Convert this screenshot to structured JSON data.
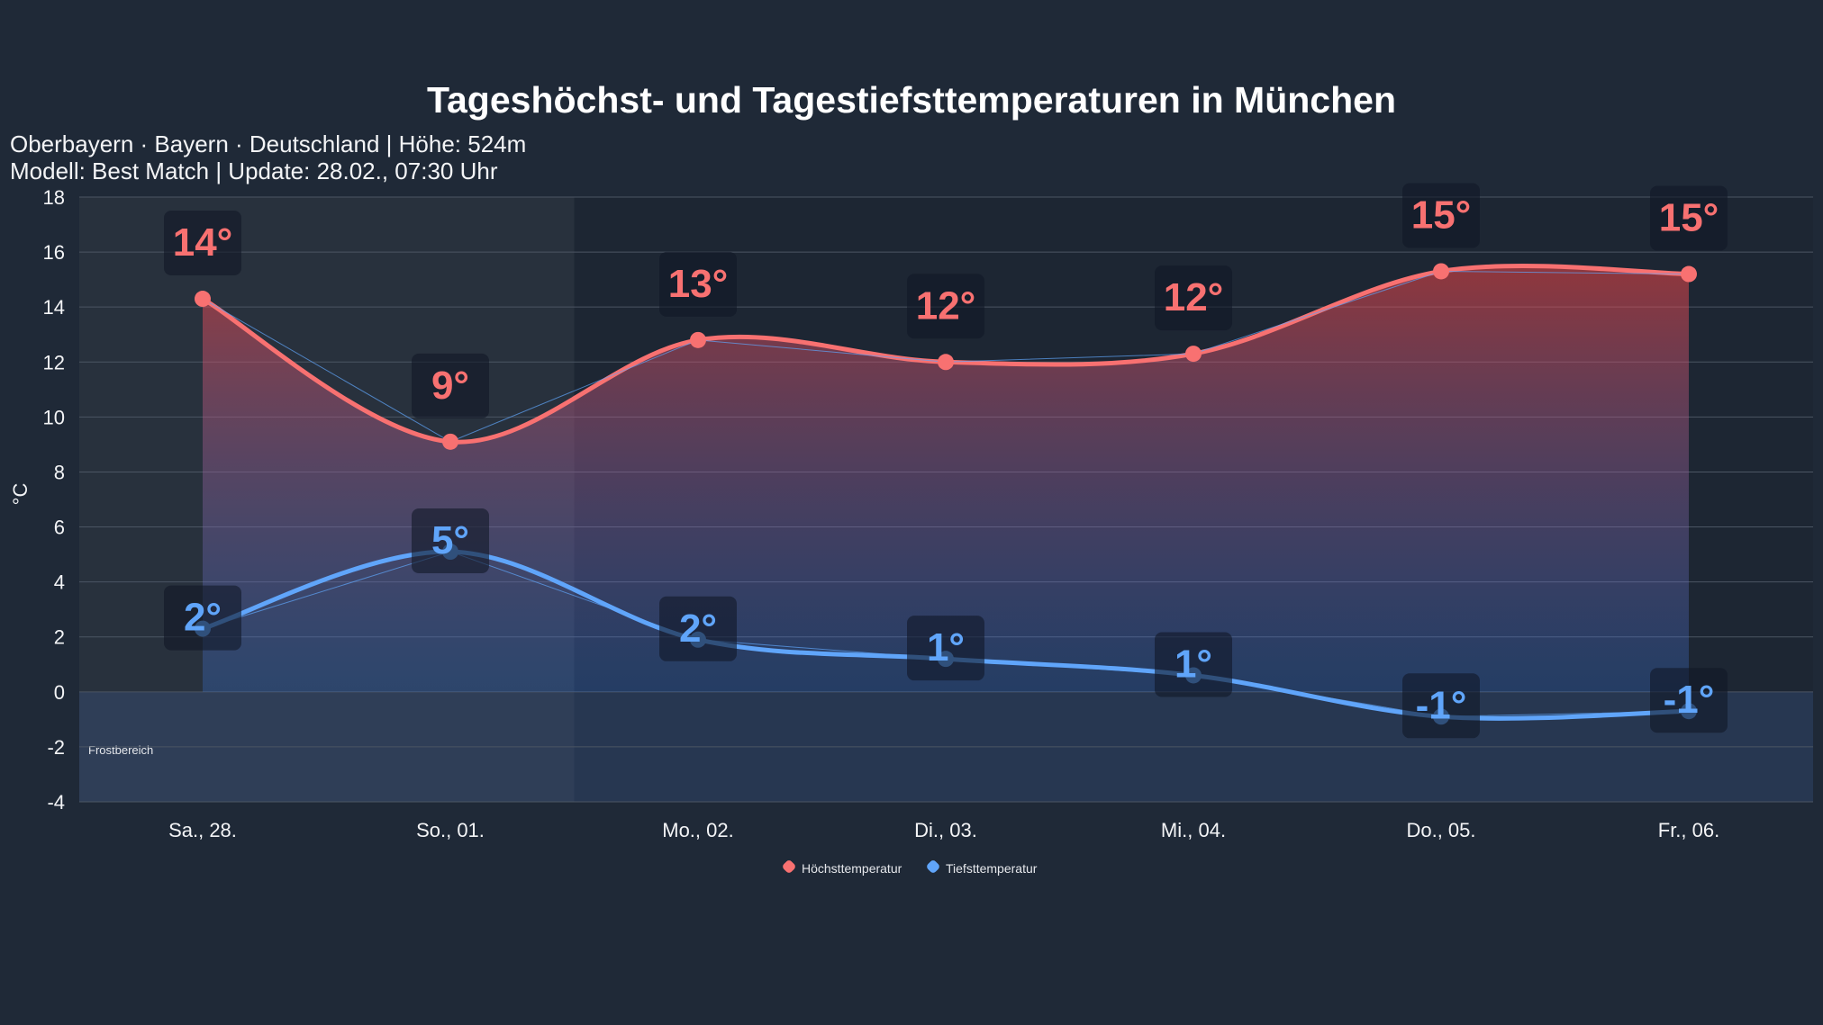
{
  "chart_data": {
    "type": "line",
    "title": "Tageshöchst- und Tagestiefsttemperaturen in München",
    "subtitle": [
      "Oberbayern · Bayern · Deutschland | Höhe: 524m",
      "Modell: Best Match | Update: 28.02., 07:30 Uhr"
    ],
    "ylabel": "°C",
    "ylim": [
      -4,
      18
    ],
    "yticks": [
      18,
      16,
      14,
      12,
      10,
      8,
      6,
      4,
      2,
      0,
      -2,
      -4
    ],
    "categories": [
      "Sa., 28.",
      "So., 01.",
      "Mo., 02.",
      "Di., 03.",
      "Mi., 04.",
      "Do., 05.",
      "Fr., 06."
    ],
    "series": [
      {
        "name": "Höchsttemperatur",
        "color": "#f87171",
        "values": [
          14.3,
          9.1,
          12.8,
          12.0,
          12.3,
          15.3,
          15.2
        ],
        "labels": [
          "14°",
          "9°",
          "13°",
          "12°",
          "12°",
          "15°",
          "15°"
        ]
      },
      {
        "name": "Tiefsttemperatur",
        "color": "#60a5fa",
        "values": [
          2.3,
          5.1,
          1.9,
          1.2,
          0.6,
          -0.9,
          -0.7
        ],
        "labels": [
          "2°",
          "5°",
          "2°",
          "1°",
          "1°",
          "-1°",
          "-1°"
        ]
      }
    ],
    "frost_label": "Frostbereich",
    "weekend_highlight": [
      "Sa., 28.",
      "So., 01."
    ],
    "grid": true,
    "legend": "bottom"
  }
}
